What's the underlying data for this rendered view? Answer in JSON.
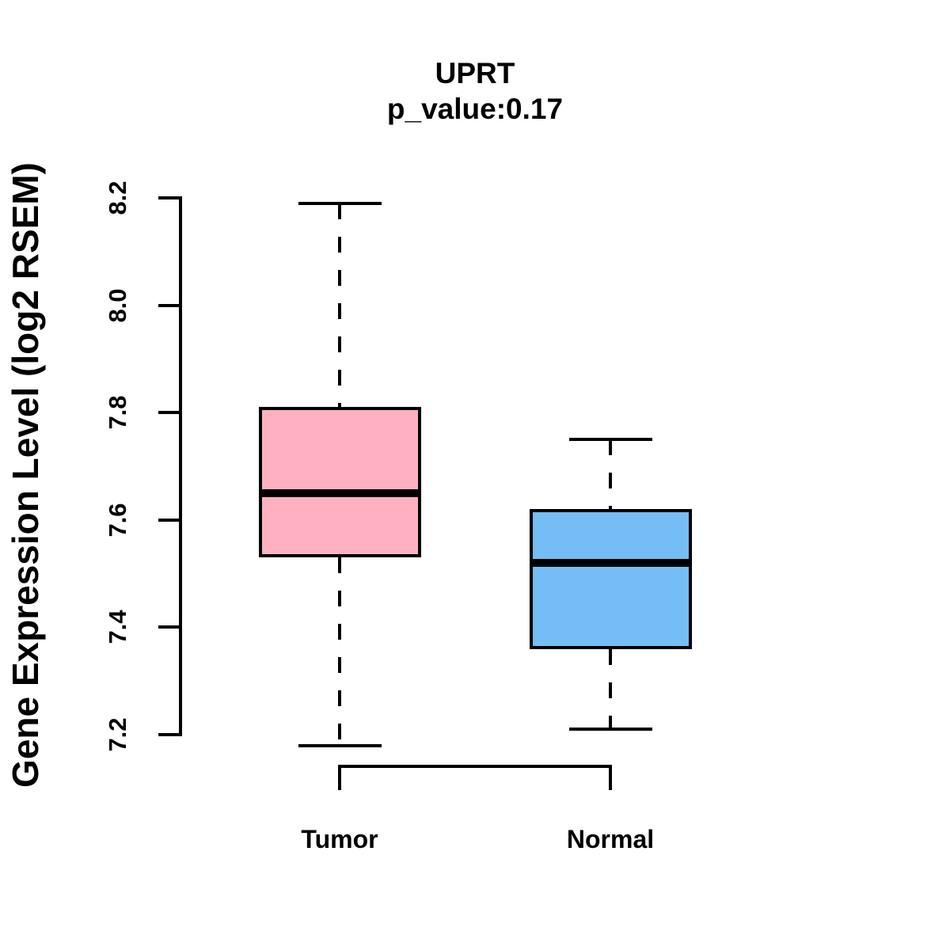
{
  "chart_data": {
    "type": "boxplot",
    "title": "UPRT",
    "subtitle": "p_value:0.17",
    "ylabel": "Gene Expression Level (log2 RSEM)",
    "xlabel": "",
    "ylim": [
      7.2,
      8.2
    ],
    "yticks": [
      "7.2",
      "7.4",
      "7.6",
      "7.8",
      "8.0",
      "8.2"
    ],
    "grid": false,
    "legend": "none",
    "groups": [
      {
        "label": "Tumor",
        "color": "#FFB1C1",
        "whisker_low": 7.18,
        "q1": 7.53,
        "median": 7.65,
        "q3": 7.81,
        "whisker_high": 8.19
      },
      {
        "label": "Normal",
        "color": "#74BEF5",
        "whisker_low": 7.21,
        "q1": 7.36,
        "median": 7.52,
        "q3": 7.62,
        "whisker_high": 7.75
      }
    ],
    "colors": {
      "box_border": "#000000",
      "median_line": "#000000",
      "axis": "#000000"
    }
  }
}
